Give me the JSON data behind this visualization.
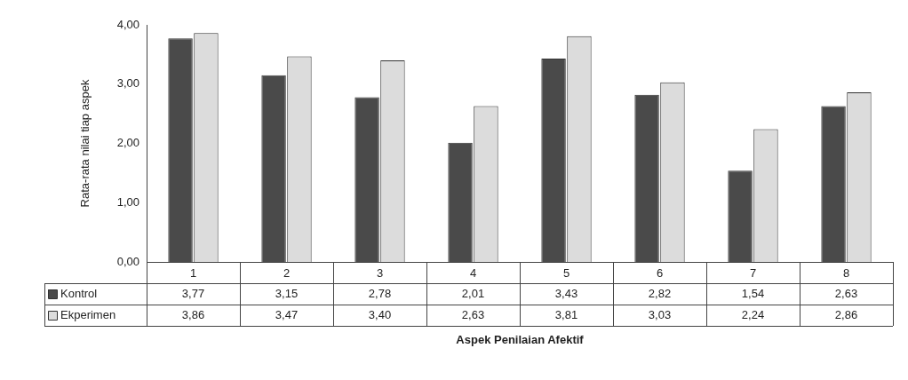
{
  "chart_data": {
    "type": "bar",
    "xlabel": "Aspek Penilaian Afektif",
    "ylabel": "Rata-rata nilai tiap aspek",
    "categories": [
      "1",
      "2",
      "3",
      "4",
      "5",
      "6",
      "7",
      "8"
    ],
    "series": [
      {
        "name": "Kontrol",
        "color": "#4a4a4a",
        "values": [
          3.77,
          3.15,
          2.78,
          2.01,
          3.43,
          2.82,
          1.54,
          2.63
        ],
        "value_labels": [
          "3,77",
          "3,15",
          "2,78",
          "2,01",
          "3,43",
          "2,82",
          "1,54",
          "2,63"
        ]
      },
      {
        "name": "Ekperimen",
        "color": "#dcdcdc",
        "values": [
          3.86,
          3.47,
          3.4,
          2.63,
          3.81,
          3.03,
          2.24,
          2.86
        ],
        "value_labels": [
          "3,86",
          "3,47",
          "3,40",
          "2,63",
          "3,81",
          "3,03",
          "2,24",
          "2,86"
        ]
      }
    ],
    "ylim": [
      0,
      4
    ],
    "yticks": [
      {
        "value": 0,
        "label": "0,00"
      },
      {
        "value": 1,
        "label": "1,00"
      },
      {
        "value": 2,
        "label": "2,00"
      },
      {
        "value": 3,
        "label": "3,00"
      },
      {
        "value": 4,
        "label": "4,00"
      }
    ],
    "grid": false,
    "legend": "bottom"
  }
}
